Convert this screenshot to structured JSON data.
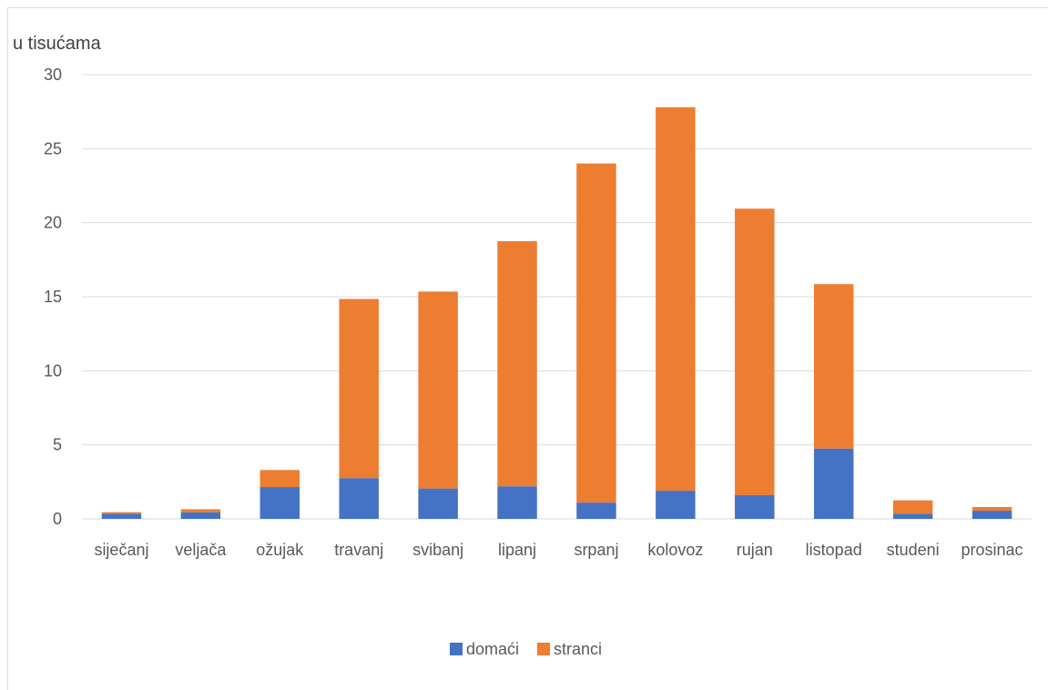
{
  "chart_data": {
    "type": "bar",
    "stacked": true,
    "ylabel": "u tisućama",
    "ylim": [
      0,
      30
    ],
    "yticks": [
      0,
      5,
      10,
      15,
      20,
      25,
      30
    ],
    "grid": true,
    "legend_position": "bottom",
    "categories": [
      "siječanj",
      "veljača",
      "ožujak",
      "travanj",
      "svibanj",
      "lipanj",
      "srpanj",
      "kolovoz",
      "rujan",
      "listopad",
      "studeni",
      "prosinac"
    ],
    "series": [
      {
        "name": "domaći",
        "color": "#4472c4",
        "values": [
          0.35,
          0.45,
          2.15,
          2.75,
          2.05,
          2.2,
          1.1,
          1.9,
          1.6,
          4.75,
          0.35,
          0.55
        ]
      },
      {
        "name": "stranci",
        "color": "#ed7d31",
        "values": [
          0.1,
          0.2,
          1.15,
          12.1,
          13.3,
          16.55,
          22.9,
          25.9,
          19.35,
          11.1,
          0.9,
          0.25
        ]
      }
    ]
  }
}
